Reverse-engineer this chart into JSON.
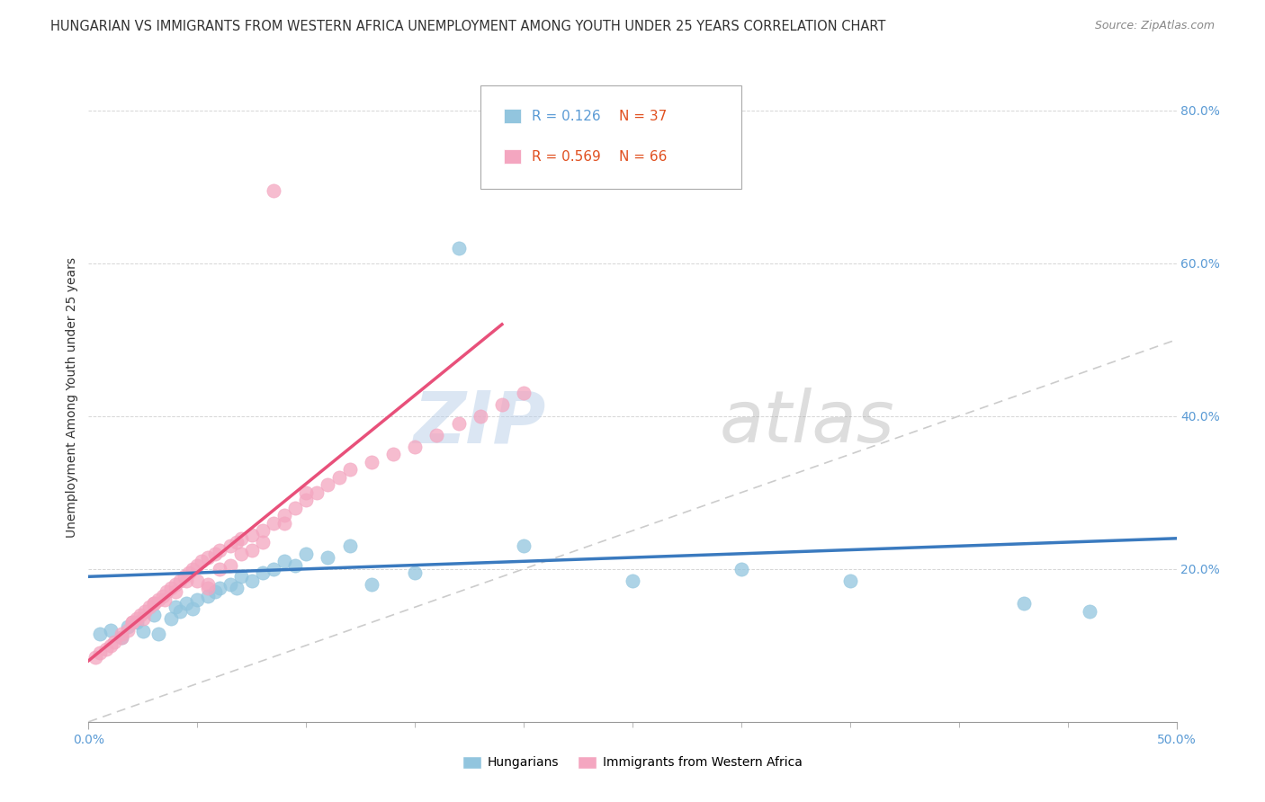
{
  "title": "HUNGARIAN VS IMMIGRANTS FROM WESTERN AFRICA UNEMPLOYMENT AMONG YOUTH UNDER 25 YEARS CORRELATION CHART",
  "source": "Source: ZipAtlas.com",
  "ylabel": "Unemployment Among Youth under 25 years",
  "xlim": [
    0.0,
    0.5
  ],
  "ylim": [
    0.0,
    0.85
  ],
  "xticks": [
    0.0,
    0.5
  ],
  "xticklabels": [
    "0.0%",
    "50.0%"
  ],
  "yticks": [
    0.2,
    0.4,
    0.6,
    0.8
  ],
  "yticklabels": [
    "20.0%",
    "40.0%",
    "60.0%",
    "80.0%"
  ],
  "legend_r1": "R = 0.126",
  "legend_n1": "N = 37",
  "legend_r2": "R = 0.569",
  "legend_n2": "N = 66",
  "color_hungarian": "#92c5de",
  "color_immigrant": "#f4a6c0",
  "color_trend_hungarian": "#3a7abf",
  "color_trend_immigrant": "#e8507a",
  "color_diagonal": "#cccccc",
  "hungarian_x": [
    0.005,
    0.01,
    0.015,
    0.018,
    0.022,
    0.025,
    0.03,
    0.032,
    0.038,
    0.04,
    0.042,
    0.045,
    0.048,
    0.05,
    0.055,
    0.058,
    0.06,
    0.065,
    0.068,
    0.07,
    0.075,
    0.08,
    0.085,
    0.09,
    0.095,
    0.1,
    0.11,
    0.12,
    0.13,
    0.15,
    0.2,
    0.25,
    0.3,
    0.35,
    0.43,
    0.46,
    0.17
  ],
  "hungarian_y": [
    0.115,
    0.12,
    0.11,
    0.125,
    0.13,
    0.118,
    0.14,
    0.115,
    0.135,
    0.15,
    0.145,
    0.155,
    0.148,
    0.16,
    0.165,
    0.17,
    0.175,
    0.18,
    0.175,
    0.19,
    0.185,
    0.195,
    0.2,
    0.21,
    0.205,
    0.22,
    0.215,
    0.23,
    0.18,
    0.195,
    0.23,
    0.185,
    0.2,
    0.185,
    0.155,
    0.145,
    0.62
  ],
  "immigrant_x": [
    0.003,
    0.005,
    0.008,
    0.01,
    0.012,
    0.015,
    0.018,
    0.02,
    0.022,
    0.024,
    0.026,
    0.028,
    0.03,
    0.032,
    0.034,
    0.036,
    0.038,
    0.04,
    0.042,
    0.044,
    0.046,
    0.048,
    0.05,
    0.052,
    0.055,
    0.058,
    0.06,
    0.065,
    0.068,
    0.07,
    0.075,
    0.08,
    0.085,
    0.09,
    0.095,
    0.1,
    0.105,
    0.11,
    0.115,
    0.12,
    0.13,
    0.14,
    0.15,
    0.16,
    0.17,
    0.18,
    0.19,
    0.2,
    0.055,
    0.065,
    0.015,
    0.025,
    0.02,
    0.035,
    0.045,
    0.075,
    0.055,
    0.08,
    0.09,
    0.1,
    0.03,
    0.04,
    0.06,
    0.07,
    0.05,
    0.085
  ],
  "immigrant_y": [
    0.085,
    0.09,
    0.095,
    0.1,
    0.105,
    0.11,
    0.12,
    0.13,
    0.135,
    0.14,
    0.145,
    0.15,
    0.155,
    0.16,
    0.165,
    0.17,
    0.175,
    0.18,
    0.185,
    0.19,
    0.195,
    0.2,
    0.205,
    0.21,
    0.215,
    0.22,
    0.225,
    0.23,
    0.235,
    0.24,
    0.245,
    0.25,
    0.26,
    0.27,
    0.28,
    0.29,
    0.3,
    0.31,
    0.32,
    0.33,
    0.34,
    0.35,
    0.36,
    0.375,
    0.39,
    0.4,
    0.415,
    0.43,
    0.175,
    0.205,
    0.115,
    0.135,
    0.13,
    0.16,
    0.185,
    0.225,
    0.18,
    0.235,
    0.26,
    0.3,
    0.155,
    0.17,
    0.2,
    0.22,
    0.185,
    0.695
  ],
  "watermark_zip": "ZIP",
  "watermark_atlas": "atlas",
  "background_color": "#ffffff",
  "title_fontsize": 10.5,
  "axis_label_fontsize": 10,
  "tick_fontsize": 10,
  "legend_fontsize": 11
}
